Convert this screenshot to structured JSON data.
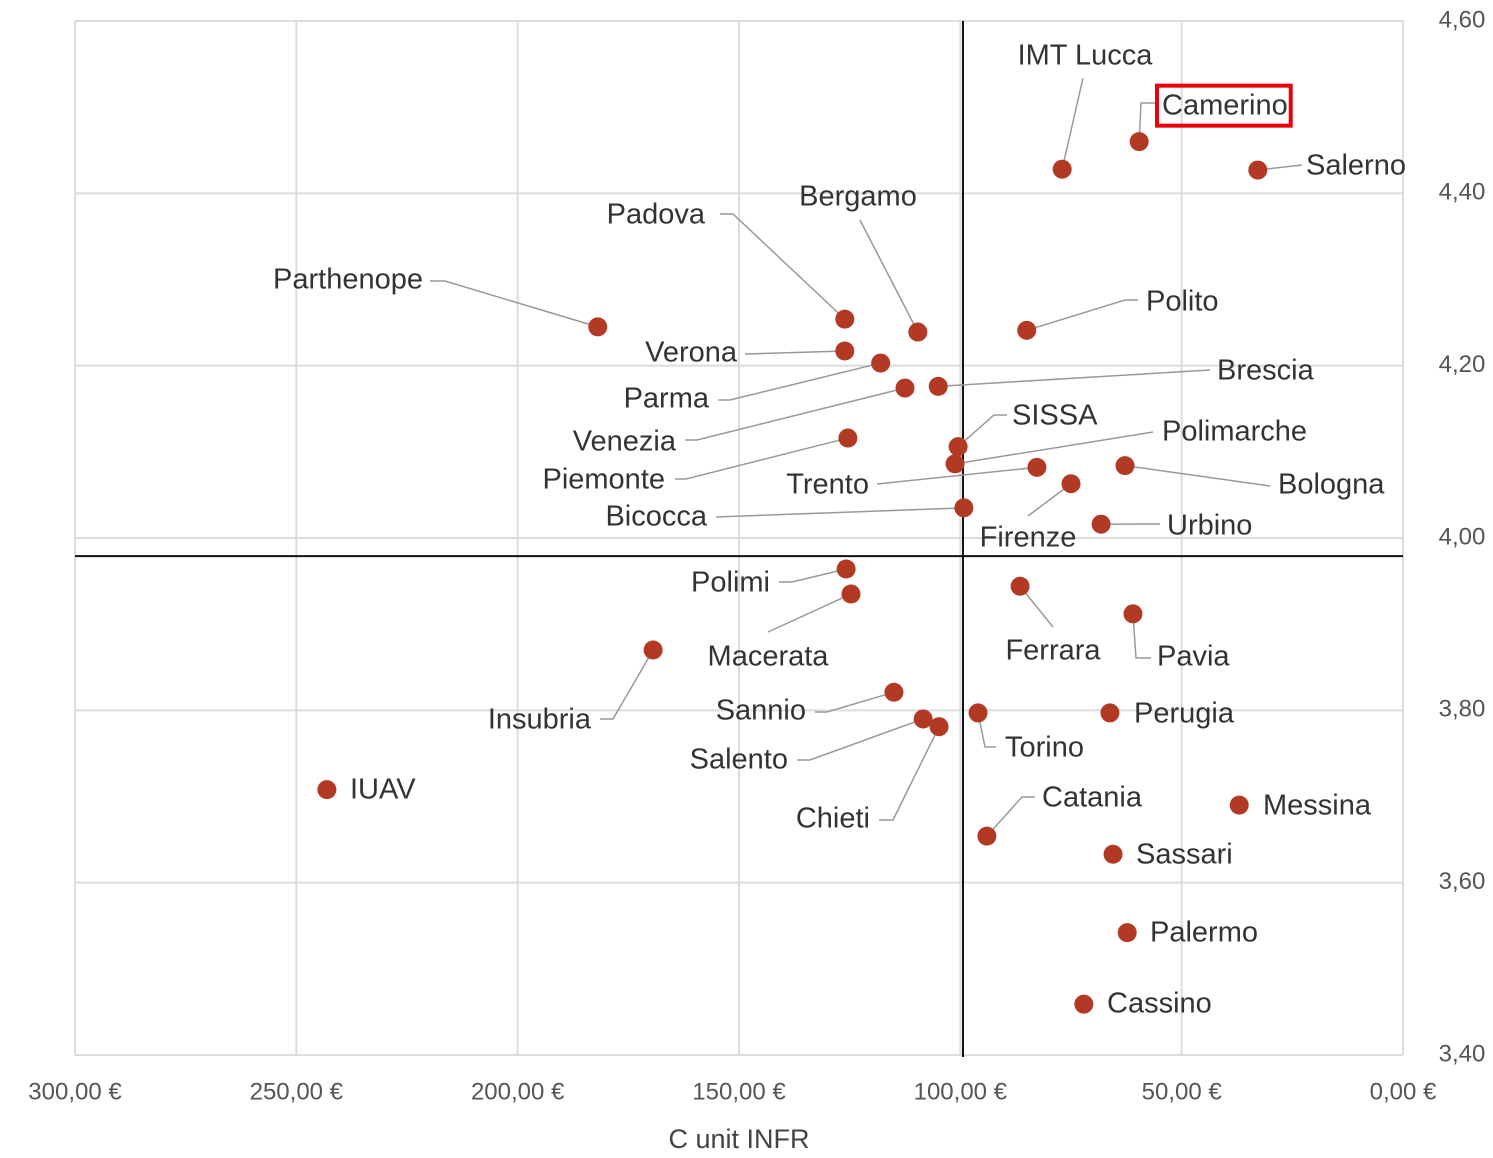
{
  "chart_data": {
    "type": "scatter",
    "x_label": "C unit INFR",
    "color": "#b23a24",
    "xlim": [
      300,
      0
    ],
    "ylim": [
      3.4,
      4.6
    ],
    "xticks": [
      {
        "value": 300,
        "label": "300,00 €"
      },
      {
        "value": 250,
        "label": "250,00 €"
      },
      {
        "value": 200,
        "label": "200,00 €"
      },
      {
        "value": 150,
        "label": "150,00 €"
      },
      {
        "value": 100,
        "label": "100,00 €"
      },
      {
        "value": 50,
        "label": "50,00 €"
      },
      {
        "value": 0,
        "label": "0,00 €"
      }
    ],
    "yticks": [
      {
        "value": 4.6,
        "label": "4,60"
      },
      {
        "value": 4.4,
        "label": "4,40"
      },
      {
        "value": 4.2,
        "label": "4,20"
      },
      {
        "value": 4.0,
        "label": "4,00"
      },
      {
        "value": 3.8,
        "label": "3,80"
      },
      {
        "value": 3.6,
        "label": "3,60"
      },
      {
        "value": 3.4,
        "label": "3,40"
      }
    ],
    "grid": true,
    "x_reference": 99.4,
    "y_reference": 3.979,
    "highlight": 1,
    "points": [
      {
        "label": "IMT Lucca",
        "x": 77.0,
        "y": 4.428
      },
      {
        "label": "Camerino",
        "x": 59.6,
        "y": 4.46
      },
      {
        "label": "Salerno",
        "x": 32.8,
        "y": 4.427
      },
      {
        "label": "Parthenope",
        "x": 181.9,
        "y": 4.245
      },
      {
        "label": "Padova",
        "x": 126.1,
        "y": 4.254
      },
      {
        "label": "Bergamo",
        "x": 109.6,
        "y": 4.239
      },
      {
        "label": "Polito",
        "x": 85.0,
        "y": 4.241
      },
      {
        "label": "Verona",
        "x": 126.1,
        "y": 4.217
      },
      {
        "label": "Parma",
        "x": 118.0,
        "y": 4.203
      },
      {
        "label": "Venezia",
        "x": 112.5,
        "y": 4.174
      },
      {
        "label": "Brescia",
        "x": 105.0,
        "y": 4.176
      },
      {
        "label": "Piemonte",
        "x": 125.4,
        "y": 4.116
      },
      {
        "label": "SISSA",
        "x": 100.5,
        "y": 4.106
      },
      {
        "label": "Polimarche",
        "x": 101.2,
        "y": 4.086
      },
      {
        "label": "Trento",
        "x": 82.7,
        "y": 4.082
      },
      {
        "label": "Firenze",
        "x": 75.0,
        "y": 4.063
      },
      {
        "label": "Bologna",
        "x": 62.8,
        "y": 4.084
      },
      {
        "label": "Bicocca",
        "x": 99.2,
        "y": 4.035
      },
      {
        "label": "Urbino",
        "x": 68.2,
        "y": 4.016
      },
      {
        "label": "Polimi",
        "x": 125.8,
        "y": 3.964
      },
      {
        "label": "Macerata",
        "x": 124.7,
        "y": 3.935
      },
      {
        "label": "Ferrara",
        "x": 86.5,
        "y": 3.944
      },
      {
        "label": "Pavia",
        "x": 61.0,
        "y": 3.912
      },
      {
        "label": "Insubria",
        "x": 169.4,
        "y": 3.87
      },
      {
        "label": "Sannio",
        "x": 115.0,
        "y": 3.821
      },
      {
        "label": "Salento",
        "x": 108.4,
        "y": 3.79
      },
      {
        "label": "Chieti",
        "x": 104.8,
        "y": 3.781
      },
      {
        "label": "Torino",
        "x": 96.0,
        "y": 3.797
      },
      {
        "label": "Perugia",
        "x": 66.2,
        "y": 3.797
      },
      {
        "label": "IUAV",
        "x": 243.1,
        "y": 3.708
      },
      {
        "label": "Catania",
        "x": 94.0,
        "y": 3.654
      },
      {
        "label": "Messina",
        "x": 37.0,
        "y": 3.69
      },
      {
        "label": "Sassari",
        "x": 65.5,
        "y": 3.633
      },
      {
        "label": "Palermo",
        "x": 62.3,
        "y": 3.542
      },
      {
        "label": "Cassino",
        "x": 72.1,
        "y": 3.459
      }
    ]
  }
}
